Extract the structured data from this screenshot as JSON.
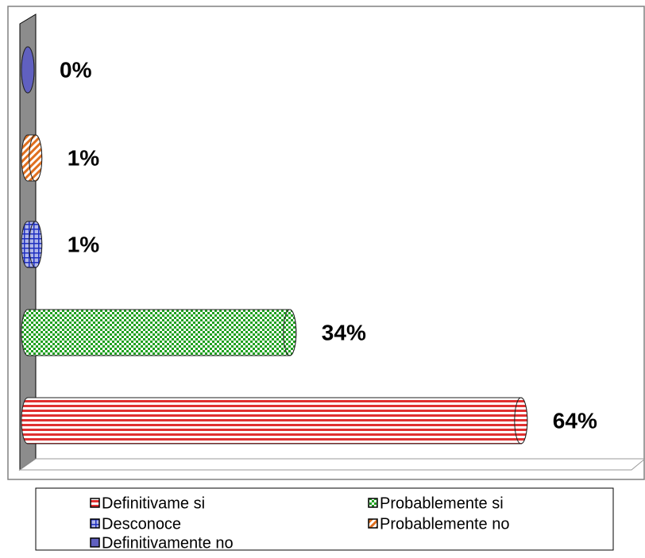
{
  "chart_data": {
    "type": "bar",
    "orientation": "horizontal",
    "series": [
      {
        "name": "Definitivame si",
        "color": "#e03030",
        "pattern": "horizontal-stripes",
        "values": [
          64
        ],
        "value_labels": [
          "64%"
        ]
      },
      {
        "name": "Probablemente si",
        "color": "#20a020",
        "pattern": "checker",
        "values": [
          34
        ],
        "value_labels": [
          "34%"
        ]
      },
      {
        "name": "Desconoce",
        "color": "#2030c0",
        "pattern": "grid",
        "values": [
          1
        ],
        "value_labels": [
          "1%"
        ]
      },
      {
        "name": "Probablemente no",
        "color": "#e07020",
        "pattern": "diagonal",
        "values": [
          1
        ],
        "value_labels": [
          "1%"
        ]
      },
      {
        "name": "Definitivamente no",
        "color": "#6060c0",
        "pattern": "solid",
        "values": [
          0
        ],
        "value_labels": [
          "0%"
        ]
      }
    ]
  }
}
